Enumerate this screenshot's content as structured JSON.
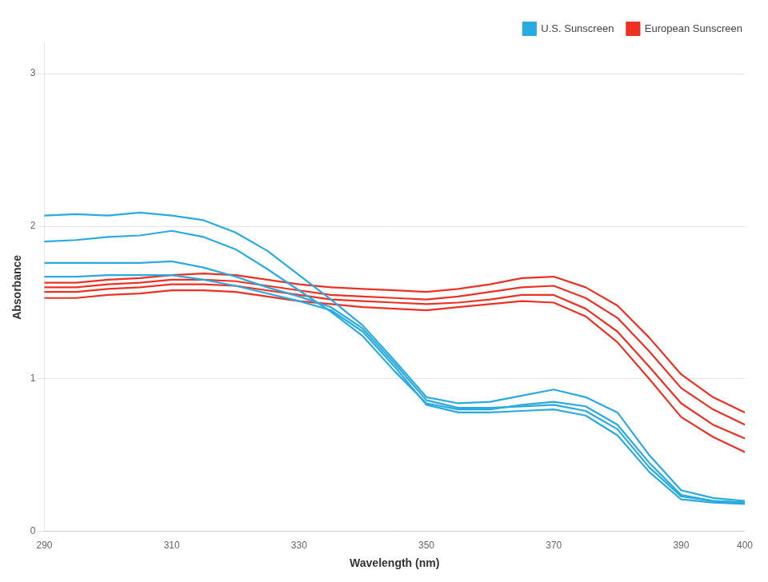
{
  "chart_data": {
    "type": "line",
    "x": [
      290,
      295,
      300,
      305,
      310,
      315,
      320,
      325,
      330,
      335,
      340,
      345,
      350,
      355,
      360,
      365,
      370,
      375,
      380,
      385,
      390,
      395,
      400
    ],
    "series": [
      {
        "name": "U.S. Sunscreen",
        "color": "#29AAE1",
        "values": [
          2.07,
          2.08,
          2.07,
          2.09,
          2.07,
          2.04,
          1.96,
          1.84,
          1.68,
          1.52,
          1.35,
          1.12,
          0.88,
          0.84,
          0.85,
          0.89,
          0.93,
          0.88,
          0.78,
          0.5,
          0.27,
          0.22,
          0.2
        ]
      },
      {
        "name": "U.S. Sunscreen",
        "color": "#29AAE1",
        "values": [
          1.9,
          1.91,
          1.93,
          1.94,
          1.97,
          1.93,
          1.85,
          1.72,
          1.58,
          1.44,
          1.28,
          1.05,
          0.84,
          0.8,
          0.8,
          0.83,
          0.85,
          0.82,
          0.7,
          0.45,
          0.24,
          0.2,
          0.19
        ]
      },
      {
        "name": "U.S. Sunscreen",
        "color": "#29AAE1",
        "values": [
          1.76,
          1.76,
          1.76,
          1.76,
          1.77,
          1.73,
          1.67,
          1.6,
          1.54,
          1.47,
          1.33,
          1.1,
          0.86,
          0.81,
          0.81,
          0.82,
          0.83,
          0.79,
          0.67,
          0.42,
          0.23,
          0.2,
          0.19
        ]
      },
      {
        "name": "U.S. Sunscreen",
        "color": "#29AAE1",
        "values": [
          1.67,
          1.67,
          1.68,
          1.68,
          1.68,
          1.65,
          1.61,
          1.56,
          1.51,
          1.45,
          1.31,
          1.08,
          0.83,
          0.78,
          0.78,
          0.79,
          0.8,
          0.76,
          0.63,
          0.39,
          0.21,
          0.19,
          0.18
        ]
      },
      {
        "name": "European Sunscreen",
        "color": "#ED3024",
        "values": [
          1.63,
          1.63,
          1.65,
          1.66,
          1.68,
          1.69,
          1.68,
          1.65,
          1.62,
          1.6,
          1.59,
          1.58,
          1.57,
          1.59,
          1.62,
          1.66,
          1.67,
          1.6,
          1.48,
          1.27,
          1.03,
          0.88,
          0.78
        ]
      },
      {
        "name": "European Sunscreen",
        "color": "#ED3024",
        "values": [
          1.6,
          1.6,
          1.62,
          1.63,
          1.65,
          1.65,
          1.64,
          1.61,
          1.58,
          1.55,
          1.54,
          1.53,
          1.52,
          1.54,
          1.57,
          1.6,
          1.61,
          1.53,
          1.4,
          1.18,
          0.94,
          0.8,
          0.7
        ]
      },
      {
        "name": "European Sunscreen",
        "color": "#ED3024",
        "values": [
          1.57,
          1.57,
          1.59,
          1.6,
          1.62,
          1.62,
          1.61,
          1.58,
          1.55,
          1.52,
          1.51,
          1.5,
          1.49,
          1.5,
          1.52,
          1.55,
          1.55,
          1.46,
          1.31,
          1.08,
          0.84,
          0.7,
          0.61
        ]
      },
      {
        "name": "European Sunscreen",
        "color": "#ED3024",
        "values": [
          1.53,
          1.53,
          1.55,
          1.56,
          1.58,
          1.58,
          1.57,
          1.54,
          1.51,
          1.49,
          1.47,
          1.46,
          1.45,
          1.47,
          1.49,
          1.51,
          1.5,
          1.41,
          1.24,
          1.0,
          0.75,
          0.62,
          0.52
        ]
      }
    ],
    "xlabel": "Wavelength (nm)",
    "ylabel": "Absorbance",
    "xlim": [
      290,
      400
    ],
    "ylim": [
      0,
      3.2
    ],
    "xticks": [
      290,
      310,
      330,
      350,
      370,
      390,
      400
    ],
    "yticks": [
      0,
      1,
      2,
      3
    ],
    "grid": "y",
    "legend": "upper right"
  }
}
